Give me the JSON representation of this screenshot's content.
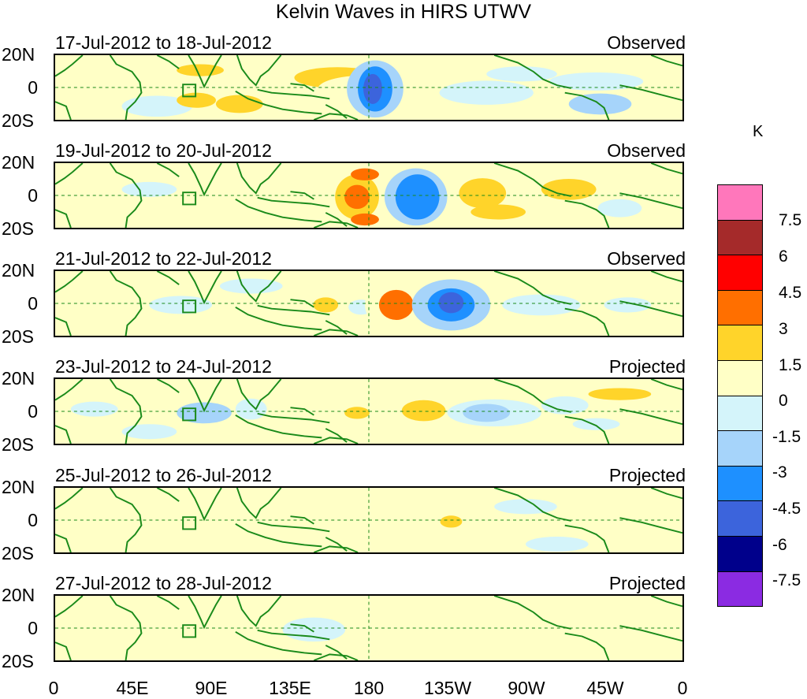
{
  "title": "Kelvin Waves in HIRS UTWV",
  "panels": [
    {
      "date": "17-Jul-2012 to 18-Jul-2012",
      "status": "Observed"
    },
    {
      "date": "19-Jul-2012 to 20-Jul-2012",
      "status": "Observed"
    },
    {
      "date": "21-Jul-2012 to 22-Jul-2012",
      "status": "Observed"
    },
    {
      "date": "23-Jul-2012 to 24-Jul-2012",
      "status": "Projected"
    },
    {
      "date": "25-Jul-2012 to 26-Jul-2012",
      "status": "Projected"
    },
    {
      "date": "27-Jul-2012 to 28-Jul-2012",
      "status": "Projected"
    }
  ],
  "lat_labels": {
    "north": "20N",
    "equator": "0",
    "south": "20S"
  },
  "lon_labels": [
    "0",
    "45E",
    "90E",
    "135E",
    "180",
    "135W",
    "90W",
    "45W",
    "0"
  ],
  "colorbar": {
    "unit": "K",
    "labels": [
      "7.5",
      "6",
      "4.5",
      "3",
      "1.5",
      "0",
      "-1.5",
      "-3",
      "-4.5",
      "-6",
      "-7.5"
    ],
    "colors": [
      "#ff77bb",
      "#a52a2a",
      "#ff0000",
      "#ff6f00",
      "#ffd42a",
      "#ffffc6",
      "#d4f4fa",
      "#a6d4fa",
      "#1e90ff",
      "#3c64dc",
      "#00008b",
      "#8b2be2"
    ]
  },
  "colors": {
    "coast": "#1a8a1a",
    "neutral_pos": "#ffffc6",
    "neutral_neg": "#d4f4fa"
  }
}
